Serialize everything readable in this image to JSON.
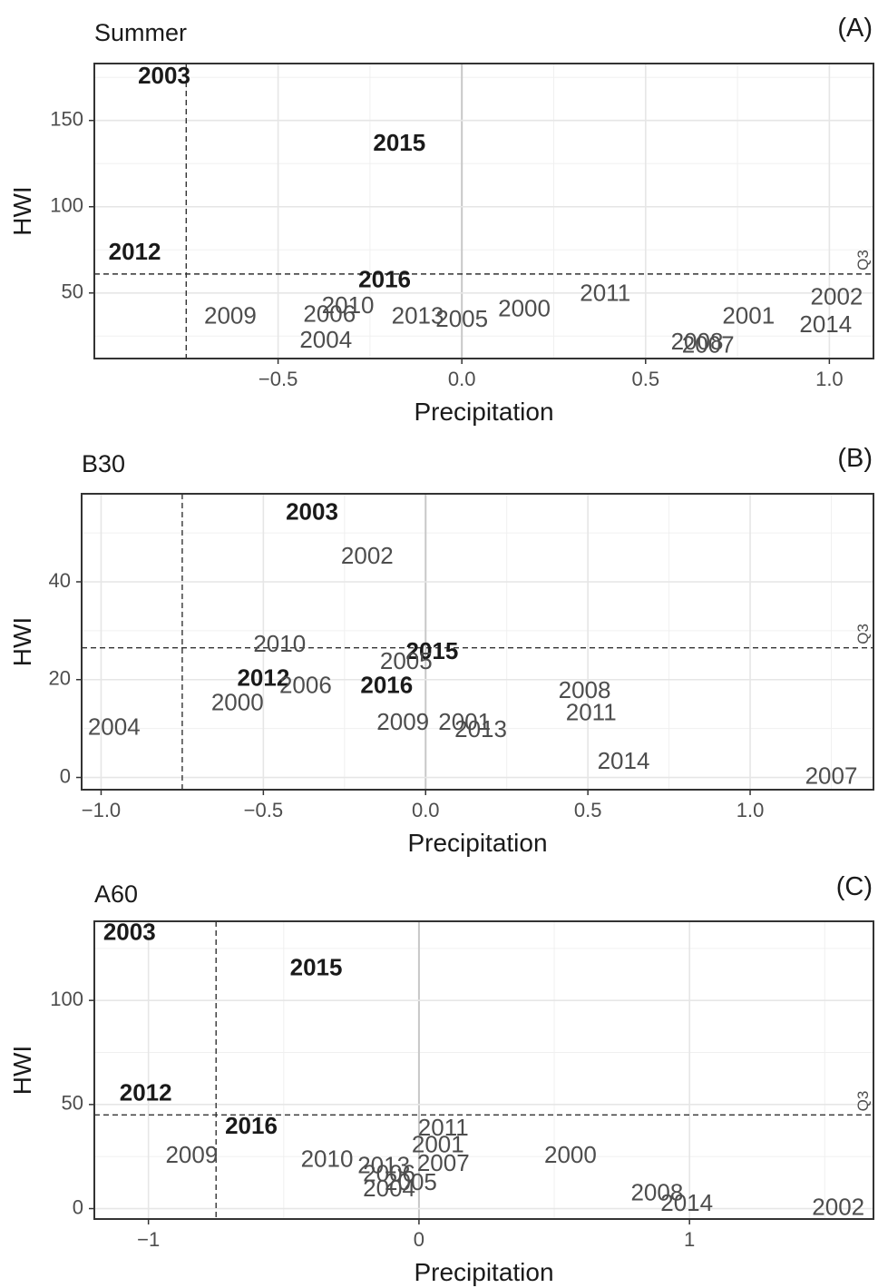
{
  "chart_data": [
    {
      "type": "scatter",
      "panel_tag": "(A)",
      "title": "Summer",
      "xlabel": "Precipitation",
      "ylabel": "HWI",
      "xlim": [
        -1.0,
        1.12
      ],
      "ylim": [
        12,
        183
      ],
      "xticks": [
        -0.5,
        0.0,
        0.5,
        1.0
      ],
      "xtick_labels": [
        "−0.5",
        "0.0",
        "0.5",
        "1.0"
      ],
      "yticks": [
        50,
        100,
        150
      ],
      "ytick_labels": [
        "50",
        "100",
        "150"
      ],
      "grid": true,
      "vline_dashed": -0.75,
      "hline_dashed": 61,
      "hline_label": "Q3",
      "points": [
        {
          "label": "2003",
          "x": -0.81,
          "y": 175,
          "bold": true
        },
        {
          "label": "2015",
          "x": -0.17,
          "y": 136,
          "bold": true
        },
        {
          "label": "2012",
          "x": -0.89,
          "y": 73,
          "bold": true
        },
        {
          "label": "2016",
          "x": -0.21,
          "y": 57,
          "bold": true
        },
        {
          "label": "2009",
          "x": -0.63,
          "y": 36,
          "bold": false
        },
        {
          "label": "2010",
          "x": -0.31,
          "y": 42,
          "bold": false
        },
        {
          "label": "2006",
          "x": -0.36,
          "y": 37,
          "bold": false
        },
        {
          "label": "2004",
          "x": -0.37,
          "y": 22,
          "bold": false
        },
        {
          "label": "2013",
          "x": -0.12,
          "y": 36,
          "bold": false
        },
        {
          "label": "2005",
          "x": 0.0,
          "y": 34,
          "bold": false
        },
        {
          "label": "2000",
          "x": 0.17,
          "y": 40,
          "bold": false
        },
        {
          "label": "2011",
          "x": 0.39,
          "y": 49,
          "bold": false
        },
        {
          "label": "2001",
          "x": 0.78,
          "y": 36,
          "bold": false
        },
        {
          "label": "2002",
          "x": 1.02,
          "y": 47,
          "bold": false
        },
        {
          "label": "2014",
          "x": 0.99,
          "y": 31,
          "bold": false
        },
        {
          "label": "2008",
          "x": 0.64,
          "y": 21,
          "bold": false
        },
        {
          "label": "2007",
          "x": 0.67,
          "y": 19,
          "bold": false
        }
      ]
    },
    {
      "type": "scatter",
      "panel_tag": "(B)",
      "title": "B30",
      "xlabel": "Precipitation",
      "ylabel": "HWI",
      "xlim": [
        -1.06,
        1.38
      ],
      "ylim": [
        -2.5,
        58
      ],
      "xticks": [
        -1.0,
        -0.5,
        0.0,
        0.5,
        1.0
      ],
      "xtick_labels": [
        "−1.0",
        "−0.5",
        "0.0",
        "0.5",
        "1.0"
      ],
      "yticks": [
        0,
        20,
        40
      ],
      "ytick_labels": [
        "0",
        "20",
        "40"
      ],
      "grid": true,
      "vline_dashed": -0.75,
      "hline_dashed": 26.5,
      "hline_label": "Q3",
      "points": [
        {
          "label": "2003",
          "x": -0.35,
          "y": 54,
          "bold": true
        },
        {
          "label": "2002",
          "x": -0.18,
          "y": 45,
          "bold": false
        },
        {
          "label": "2010",
          "x": -0.45,
          "y": 27,
          "bold": false
        },
        {
          "label": "2015",
          "x": 0.02,
          "y": 25.5,
          "bold": true
        },
        {
          "label": "2005",
          "x": -0.06,
          "y": 23.5,
          "bold": false
        },
        {
          "label": "2012",
          "x": -0.5,
          "y": 20,
          "bold": true
        },
        {
          "label": "2006",
          "x": -0.37,
          "y": 18.5,
          "bold": false
        },
        {
          "label": "2016",
          "x": -0.12,
          "y": 18.5,
          "bold": true
        },
        {
          "label": "2000",
          "x": -0.58,
          "y": 15,
          "bold": false
        },
        {
          "label": "2004",
          "x": -0.96,
          "y": 10,
          "bold": false
        },
        {
          "label": "2009",
          "x": -0.07,
          "y": 11,
          "bold": false
        },
        {
          "label": "2001",
          "x": 0.12,
          "y": 11,
          "bold": false
        },
        {
          "label": "2013",
          "x": 0.17,
          "y": 9.5,
          "bold": false
        },
        {
          "label": "2008",
          "x": 0.49,
          "y": 17.5,
          "bold": false
        },
        {
          "label": "2011",
          "x": 0.51,
          "y": 13,
          "bold": false
        },
        {
          "label": "2014",
          "x": 0.61,
          "y": 3,
          "bold": false
        },
        {
          "label": "2007",
          "x": 1.25,
          "y": 0,
          "bold": false
        }
      ]
    },
    {
      "type": "scatter",
      "panel_tag": "(C)",
      "title": "A60",
      "xlabel": "Precipitation",
      "ylabel": "HWI",
      "xlim": [
        -1.2,
        1.68
      ],
      "ylim": [
        -5,
        138
      ],
      "xticks": [
        -1,
        0,
        1
      ],
      "xtick_labels": [
        "−1",
        "0",
        "1"
      ],
      "yticks": [
        0,
        50,
        100
      ],
      "ytick_labels": [
        "0",
        "50",
        "100"
      ],
      "grid": true,
      "vline_dashed": -0.75,
      "hline_dashed": 45,
      "hline_label": "Q3",
      "points": [
        {
          "label": "2003",
          "x": -1.07,
          "y": 132,
          "bold": true
        },
        {
          "label": "2015",
          "x": -0.38,
          "y": 115,
          "bold": true
        },
        {
          "label": "2012",
          "x": -1.01,
          "y": 55,
          "bold": true
        },
        {
          "label": "2016",
          "x": -0.62,
          "y": 39,
          "bold": true
        },
        {
          "label": "2009",
          "x": -0.84,
          "y": 25,
          "bold": false
        },
        {
          "label": "2010",
          "x": -0.34,
          "y": 23,
          "bold": false
        },
        {
          "label": "2013",
          "x": -0.13,
          "y": 20,
          "bold": false
        },
        {
          "label": "2006",
          "x": -0.11,
          "y": 16,
          "bold": false
        },
        {
          "label": "2005",
          "x": -0.03,
          "y": 12,
          "bold": false
        },
        {
          "label": "2004",
          "x": -0.11,
          "y": 9,
          "bold": false
        },
        {
          "label": "2011",
          "x": 0.09,
          "y": 38,
          "bold": false
        },
        {
          "label": "2001",
          "x": 0.07,
          "y": 30,
          "bold": false
        },
        {
          "label": "2007",
          "x": 0.09,
          "y": 21,
          "bold": false
        },
        {
          "label": "2000",
          "x": 0.56,
          "y": 25,
          "bold": false
        },
        {
          "label": "2008",
          "x": 0.88,
          "y": 7,
          "bold": false
        },
        {
          "label": "2014",
          "x": 0.99,
          "y": 2,
          "bold": false
        },
        {
          "label": "2002",
          "x": 1.55,
          "y": 0,
          "bold": false
        }
      ]
    }
  ]
}
